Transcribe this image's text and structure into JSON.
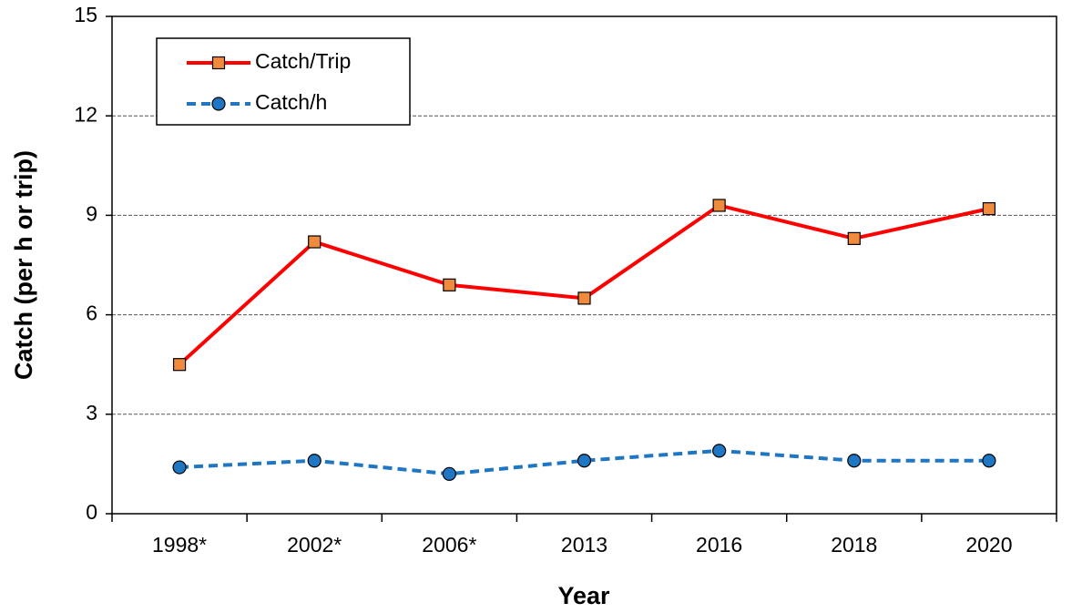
{
  "chart_data": {
    "type": "line",
    "x_label": "Year",
    "y_label": "Catch (per h or trip)",
    "categories": [
      "1998*",
      "2002*",
      "2006*",
      "2013",
      "2016",
      "2018",
      "2020"
    ],
    "series": [
      {
        "name": "Catch/Trip",
        "color": "#ff0000",
        "marker_color": "#f08a3c",
        "marker": "square",
        "dash": false,
        "values": [
          4.5,
          8.2,
          6.9,
          6.5,
          9.3,
          8.3,
          9.2
        ]
      },
      {
        "name": "Catch/h",
        "color": "#1f77c4",
        "marker_color": "#1f77c4",
        "marker": "circle",
        "dash": true,
        "values": [
          1.4,
          1.6,
          1.2,
          1.6,
          1.9,
          1.6,
          1.6
        ]
      }
    ],
    "ylim": [
      0,
      15
    ],
    "yticks": [
      0,
      3,
      6,
      9,
      12,
      15
    ],
    "grid": true,
    "legend": "upper left"
  }
}
